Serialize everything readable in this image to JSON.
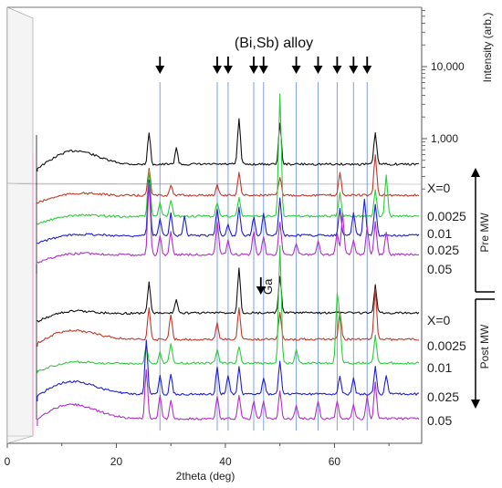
{
  "chart_data": {
    "type": "line",
    "title": "",
    "xlabel": "2theta (deg)",
    "ylabel": "Intensity (arb.)",
    "xlim": [
      0,
      76
    ],
    "x_ticks": [
      0,
      20,
      40,
      60
    ],
    "x_tick_labels": [
      "0",
      "20",
      "40",
      "60"
    ],
    "y_scale": "log",
    "y_ticks": [
      1000,
      10000
    ],
    "y_tick_labels": [
      "1,000",
      "10,000"
    ],
    "annotation_alloy": "(Bi,Sb) alloy",
    "annotation_ga": "Ga",
    "alloy_peak_positions": [
      28.0,
      38.5,
      40.5,
      45.2,
      47.0,
      53.0,
      57.0,
      60.5,
      63.5,
      66.0
    ],
    "ga_peak_position": 46.5,
    "group_labels": [
      "Pre MW",
      "Post MW"
    ],
    "series": [
      {
        "name": "X=0",
        "group": "Pre MW",
        "color": "#111111"
      },
      {
        "name": "0.0025",
        "group": "Pre MW",
        "color": "#c0392b"
      },
      {
        "name": "0.01",
        "group": "Pre MW",
        "color": "#2ecc40"
      },
      {
        "name": "0.025",
        "group": "Pre MW",
        "color": "#1f1fd6"
      },
      {
        "name": "0.05",
        "group": "Pre MW",
        "color": "#b030c8"
      },
      {
        "name": "X=0",
        "group": "Post MW",
        "color": "#111111"
      },
      {
        "name": "0.0025",
        "group": "Post MW",
        "color": "#c0392b"
      },
      {
        "name": "0.01",
        "group": "Post MW",
        "color": "#2ecc40"
      },
      {
        "name": "0.025",
        "group": "Post MW",
        "color": "#1f1fd6"
      },
      {
        "name": "0.05",
        "group": "Post MW",
        "color": "#b030c8"
      }
    ],
    "grid": false,
    "legend": "right, labels beside each curve"
  }
}
